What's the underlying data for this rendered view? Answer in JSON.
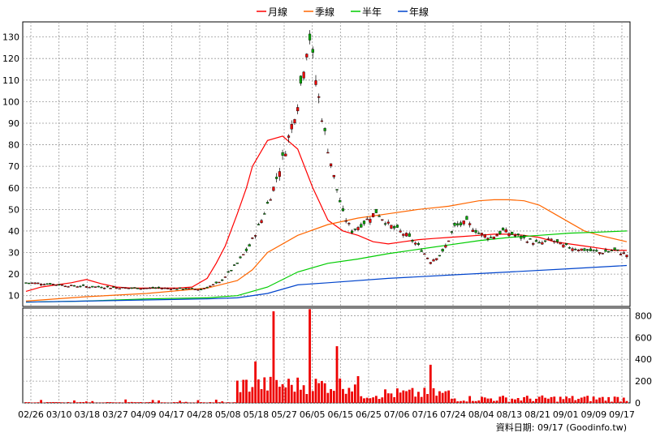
{
  "chart_data": {
    "type": "line",
    "legend": [
      {
        "label": "月線",
        "color": "#ff0000"
      },
      {
        "label": "季線",
        "color": "#ff6600"
      },
      {
        "label": "半年",
        "color": "#00cc00"
      },
      {
        "label": "年線",
        "color": "#0044cc"
      }
    ],
    "legend_position": "top-center",
    "x_tick_labels": [
      "02/26",
      "03/10",
      "03/18",
      "03/27",
      "04/09",
      "04/17",
      "04/28",
      "05/08",
      "05/18",
      "05/27",
      "06/05",
      "06/15",
      "06/25",
      "07/06",
      "07/16",
      "07/24",
      "08/04",
      "08/13",
      "08/21",
      "09/01",
      "09/09",
      "09/17"
    ],
    "price_axis": {
      "ylim": [
        5,
        137
      ],
      "ticks": [
        10,
        20,
        30,
        40,
        50,
        60,
        70,
        80,
        90,
        100,
        110,
        120,
        130
      ],
      "position": "left"
    },
    "volume_axis": {
      "ylim": [
        0,
        870
      ],
      "ticks": [
        0,
        200,
        400,
        600,
        800
      ],
      "position": "right"
    },
    "grid": true,
    "footer": "資料日期: 09/17 (Goodinfo.tw)",
    "moving_averages": [
      {
        "name": "月線",
        "color": "#ff0000",
        "x": [
          0,
          5,
          10,
          15,
          20,
          25,
          30,
          35,
          40,
          45,
          50,
          55,
          60,
          63,
          66,
          70,
          73,
          75,
          80,
          85,
          90,
          95,
          100,
          105,
          110,
          115,
          120,
          125,
          130,
          135,
          140,
          145,
          150,
          155,
          160,
          165,
          170,
          175,
          180,
          185,
          190,
          195,
          199
        ],
        "y": [
          12,
          14,
          15,
          16,
          17.5,
          15.5,
          14,
          13.5,
          13.5,
          13.5,
          13.5,
          14,
          18,
          25,
          33,
          48,
          60,
          70,
          82,
          84,
          78,
          60,
          45,
          40,
          38,
          35,
          34,
          35,
          36,
          36.5,
          37,
          37.5,
          38,
          38.5,
          38.5,
          38,
          37,
          35,
          34,
          33,
          32,
          31,
          31
        ]
      },
      {
        "name": "季線",
        "color": "#ff6600",
        "x": [
          0,
          20,
          40,
          60,
          70,
          75,
          80,
          90,
          100,
          110,
          120,
          130,
          140,
          150,
          155,
          160,
          165,
          170,
          175,
          180,
          185,
          190,
          199
        ],
        "y": [
          7.5,
          9.5,
          11,
          13.5,
          17,
          22,
          30,
          38,
          43,
          46,
          48,
          50,
          51.5,
          54,
          54.5,
          54.5,
          54,
          52,
          48,
          44,
          40,
          38,
          35
        ]
      },
      {
        "name": "半年",
        "color": "#00cc00",
        "x": [
          0,
          20,
          40,
          60,
          70,
          80,
          90,
          100,
          110,
          120,
          130,
          140,
          150,
          160,
          170,
          180,
          190,
          199
        ],
        "y": [
          7,
          7.5,
          8.5,
          9,
          10,
          14,
          21,
          25,
          27,
          29.5,
          31.5,
          33.5,
          35.5,
          37,
          38,
          39,
          39.5,
          40
        ]
      },
      {
        "name": "年線",
        "color": "#0044cc",
        "x": [
          0,
          20,
          40,
          60,
          70,
          80,
          90,
          100,
          120,
          140,
          160,
          180,
          199
        ],
        "y": [
          7,
          7.5,
          8,
          8.5,
          9,
          11,
          15,
          16,
          18,
          19.5,
          21,
          22.5,
          24
        ]
      }
    ],
    "candles_note": "daily OHLC candlesticks (red = up, green = down)",
    "volume_note": "daily trading volume bars",
    "volume_peaks": [
      {
        "x": 82,
        "v": 840
      },
      {
        "x": 94,
        "v": 860
      },
      {
        "x": 103,
        "v": 520
      },
      {
        "x": 134,
        "v": 350
      },
      {
        "x": 76,
        "v": 380
      }
    ]
  }
}
